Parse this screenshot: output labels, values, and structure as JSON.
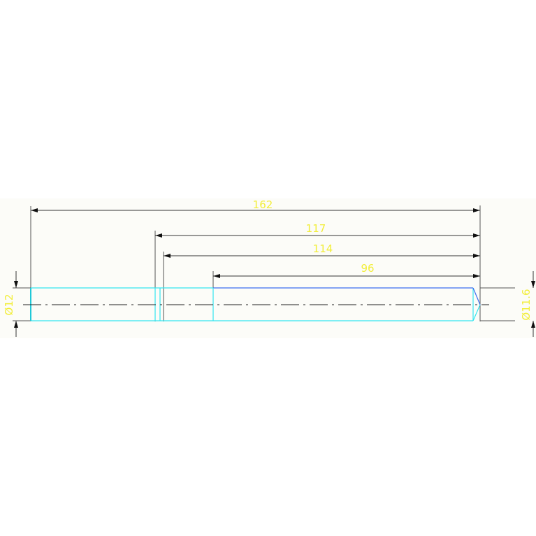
{
  "drawing": {
    "dimensions": {
      "overall_length": "162",
      "length_117": "117",
      "length_114": "114",
      "length_96": "96",
      "diameter_left": "Ø12",
      "diameter_right": "Ø11.6"
    },
    "colors": {
      "dimension_text": "#f2ee3a",
      "dimension_line": "#333333",
      "part_outline": "#33e6f0",
      "part_edge_blue": "#3a6cf0",
      "background_band": "#fcfcf8"
    }
  }
}
